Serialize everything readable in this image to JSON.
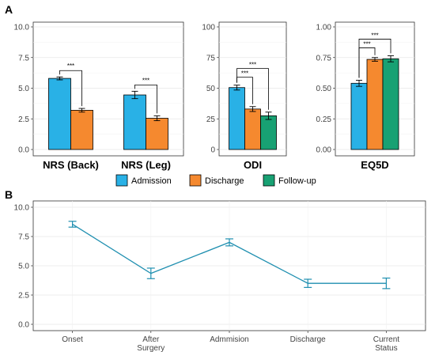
{
  "panel_a_label": "A",
  "panel_b_label": "B",
  "legend": [
    {
      "label": "Admission",
      "color": "#29B1E6"
    },
    {
      "label": "Discharge",
      "color": "#F5892F"
    },
    {
      "label": "Follow-up",
      "color": "#18A173"
    }
  ],
  "colors": {
    "admission": "#29B1E6",
    "discharge": "#F5892F",
    "followup": "#18A173",
    "line_b": "#1F8FB0"
  },
  "chart_data": [
    {
      "type": "bar",
      "panel": "A",
      "facet": "NRS",
      "groups": [
        {
          "xlabel": "NRS (Back)",
          "values": [
            5.8,
            3.2
          ],
          "errors": [
            0.12,
            0.15
          ],
          "sig": "***"
        },
        {
          "xlabel": "NRS (Leg)",
          "values": [
            4.45,
            2.55
          ],
          "errors": [
            0.3,
            0.2
          ],
          "sig": "***"
        }
      ],
      "series": [
        {
          "name": "Admission"
        },
        {
          "name": "Discharge"
        }
      ],
      "ylim": [
        0,
        10
      ],
      "yticks": [
        "0.0",
        "2.5",
        "5.0",
        "7.5",
        "10.0"
      ]
    },
    {
      "type": "bar",
      "panel": "A",
      "facet": "ODI",
      "groups": [
        {
          "xlabel": "ODI",
          "values": [
            50.5,
            33.0,
            27.5
          ],
          "errors": [
            2.0,
            2.0,
            3.0
          ]
        }
      ],
      "series": [
        {
          "name": "Admission"
        },
        {
          "name": "Discharge"
        },
        {
          "name": "Follow-up"
        }
      ],
      "sig": [
        "***",
        "***"
      ],
      "ylim": [
        0,
        100
      ],
      "yticks": [
        "0",
        "25",
        "50",
        "75",
        "100"
      ]
    },
    {
      "type": "bar",
      "panel": "A",
      "facet": "EQ5D",
      "groups": [
        {
          "xlabel": "EQ5D",
          "values": [
            0.54,
            0.735,
            0.74
          ],
          "errors": [
            0.025,
            0.015,
            0.025
          ]
        }
      ],
      "series": [
        {
          "name": "Admission"
        },
        {
          "name": "Discharge"
        },
        {
          "name": "Follow-up"
        }
      ],
      "sig": [
        "***",
        "***"
      ],
      "ylim": [
        0,
        1
      ],
      "yticks": [
        "0.00",
        "0.25",
        "0.50",
        "0.75",
        "1.00"
      ]
    },
    {
      "type": "line",
      "panel": "B",
      "categories": [
        "Onset",
        "After Surgery",
        "Admmision",
        "Discharge",
        "Current Status"
      ],
      "category_lines": [
        [
          "Onset"
        ],
        [
          "After",
          "Surgery"
        ],
        [
          "Admmision"
        ],
        [
          "Discharge"
        ],
        [
          "Current",
          "Status"
        ]
      ],
      "values": [
        8.55,
        4.35,
        7.0,
        3.5,
        3.5
      ],
      "errors": [
        0.25,
        0.45,
        0.3,
        0.35,
        0.45
      ],
      "ylim": [
        0,
        10
      ],
      "yticks": [
        "0.0",
        "2.5",
        "5.0",
        "7.5",
        "10.0"
      ]
    }
  ]
}
